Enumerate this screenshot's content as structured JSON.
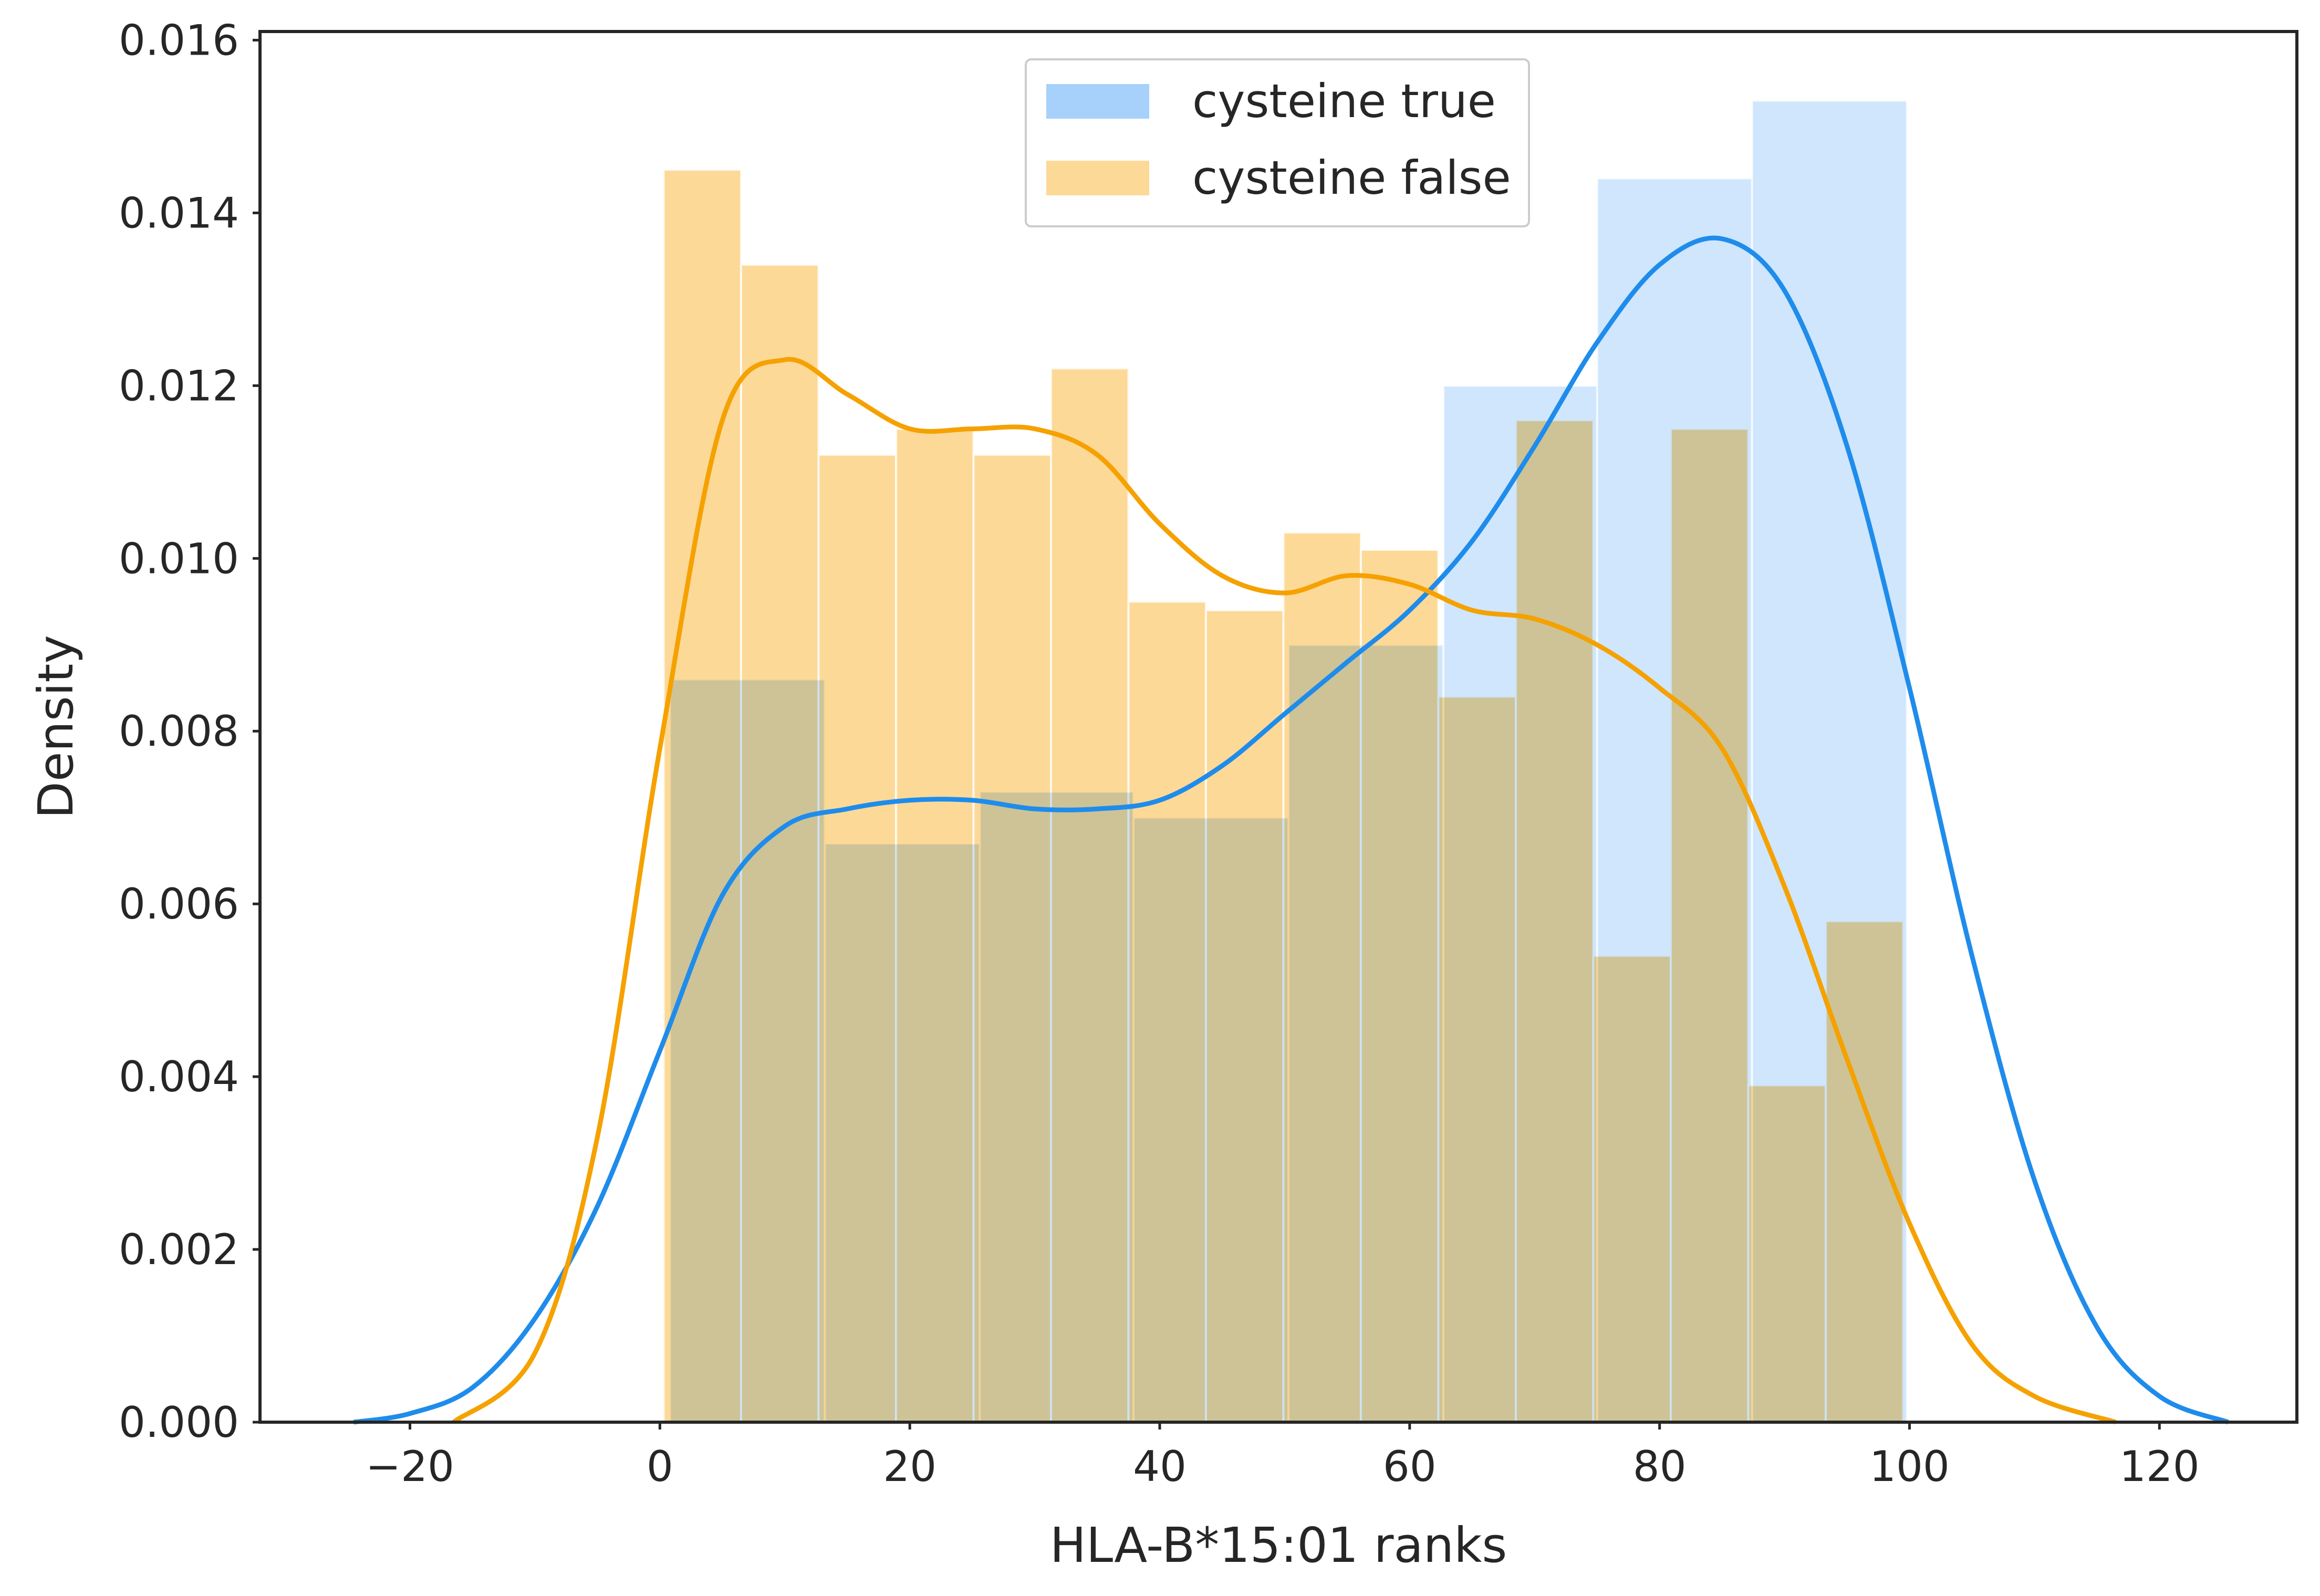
{
  "chart_data": {
    "type": "bar",
    "subtype": "histogram-with-kde",
    "xlabel": "HLA-B*15:01 ranks",
    "ylabel": "Density",
    "xlim": [
      -32,
      131
    ],
    "ylim": [
      0,
      0.0161
    ],
    "xticks": [
      -20,
      0,
      20,
      40,
      60,
      80,
      100,
      120
    ],
    "xtick_labels": [
      "−20",
      "0",
      "20",
      "40",
      "60",
      "80",
      "100",
      "120"
    ],
    "yticks": [
      0,
      0.002,
      0.004,
      0.006,
      0.008,
      0.01,
      0.012,
      0.014,
      0.016
    ],
    "ytick_labels": [
      "0.000",
      "0.002",
      "0.004",
      "0.006",
      "0.008",
      "0.010",
      "0.012",
      "0.014",
      "0.016"
    ],
    "grid": false,
    "legend_position": "top-center",
    "series": [
      {
        "name": "cysteine true",
        "color": "#1f8ceb",
        "hist_color": "#a7d1fb",
        "bins": [
          {
            "x0": 0.8,
            "x1": 13.2,
            "y": 0.0086
          },
          {
            "x0": 13.2,
            "x1": 25.6,
            "y": 0.0067
          },
          {
            "x0": 25.6,
            "x1": 37.9,
            "y": 0.0073
          },
          {
            "x0": 37.9,
            "x1": 50.3,
            "y": 0.007
          },
          {
            "x0": 50.3,
            "x1": 62.7,
            "y": 0.009
          },
          {
            "x0": 62.7,
            "x1": 75.0,
            "y": 0.012
          },
          {
            "x0": 75.0,
            "x1": 87.4,
            "y": 0.0144
          },
          {
            "x0": 87.4,
            "x1": 99.8,
            "y": 0.0153
          }
        ],
        "kde": [
          [
            -24.5,
            0.0
          ],
          [
            -20,
            0.0001
          ],
          [
            -15,
            0.0004
          ],
          [
            -10,
            0.0012
          ],
          [
            -5,
            0.0025
          ],
          [
            0,
            0.0043
          ],
          [
            5,
            0.0061
          ],
          [
            10,
            0.0069
          ],
          [
            15,
            0.0071
          ],
          [
            20,
            0.0072
          ],
          [
            25,
            0.0072
          ],
          [
            30,
            0.0071
          ],
          [
            35,
            0.0071
          ],
          [
            40,
            0.0072
          ],
          [
            45,
            0.0076
          ],
          [
            50,
            0.0082
          ],
          [
            55,
            0.0088
          ],
          [
            60,
            0.0094
          ],
          [
            65,
            0.0102
          ],
          [
            70,
            0.0113
          ],
          [
            75,
            0.0125
          ],
          [
            80,
            0.0134
          ],
          [
            85,
            0.0137
          ],
          [
            90,
            0.0131
          ],
          [
            95,
            0.0113
          ],
          [
            100,
            0.0085
          ],
          [
            105,
            0.0054
          ],
          [
            110,
            0.0028
          ],
          [
            115,
            0.0011
          ],
          [
            120,
            0.0003
          ],
          [
            125.5,
            0.0
          ]
        ]
      },
      {
        "name": "cysteine false",
        "color": "#f5a100",
        "hist_color": "#fdd998",
        "bins": [
          {
            "x0": 0.3,
            "x1": 6.5,
            "y": 0.0145
          },
          {
            "x0": 6.5,
            "x1": 12.7,
            "y": 0.0134
          },
          {
            "x0": 12.7,
            "x1": 18.9,
            "y": 0.0112
          },
          {
            "x0": 18.9,
            "x1": 25.1,
            "y": 0.0115
          },
          {
            "x0": 25.1,
            "x1": 31.3,
            "y": 0.0112
          },
          {
            "x0": 31.3,
            "x1": 37.5,
            "y": 0.0122
          },
          {
            "x0": 37.5,
            "x1": 43.7,
            "y": 0.0095
          },
          {
            "x0": 43.7,
            "x1": 49.9,
            "y": 0.0094
          },
          {
            "x0": 49.9,
            "x1": 56.1,
            "y": 0.0103
          },
          {
            "x0": 56.1,
            "x1": 62.3,
            "y": 0.0101
          },
          {
            "x0": 62.3,
            "x1": 68.5,
            "y": 0.0084
          },
          {
            "x0": 68.5,
            "x1": 74.7,
            "y": 0.0116
          },
          {
            "x0": 74.7,
            "x1": 80.9,
            "y": 0.0054
          },
          {
            "x0": 80.9,
            "x1": 87.1,
            "y": 0.0115
          },
          {
            "x0": 87.1,
            "x1": 93.3,
            "y": 0.0039
          },
          {
            "x0": 93.3,
            "x1": 99.5,
            "y": 0.0058
          }
        ],
        "kde": [
          [
            -16.5,
            0.0
          ],
          [
            -10,
            0.0008
          ],
          [
            -5,
            0.0033
          ],
          [
            0,
            0.0078
          ],
          [
            5,
            0.0116
          ],
          [
            10,
            0.0123
          ],
          [
            15,
            0.0119
          ],
          [
            20,
            0.0115
          ],
          [
            25,
            0.0115
          ],
          [
            30,
            0.0115
          ],
          [
            35,
            0.0112
          ],
          [
            40,
            0.0104
          ],
          [
            45,
            0.0098
          ],
          [
            50,
            0.0096
          ],
          [
            55,
            0.0098
          ],
          [
            60,
            0.0097
          ],
          [
            65,
            0.0094
          ],
          [
            70,
            0.0093
          ],
          [
            75,
            0.009
          ],
          [
            80,
            0.0085
          ],
          [
            85,
            0.0078
          ],
          [
            90,
            0.0062
          ],
          [
            95,
            0.0042
          ],
          [
            100,
            0.0023
          ],
          [
            105,
            0.0009
          ],
          [
            110,
            0.0003
          ],
          [
            116.5,
            0.0
          ]
        ]
      }
    ]
  }
}
